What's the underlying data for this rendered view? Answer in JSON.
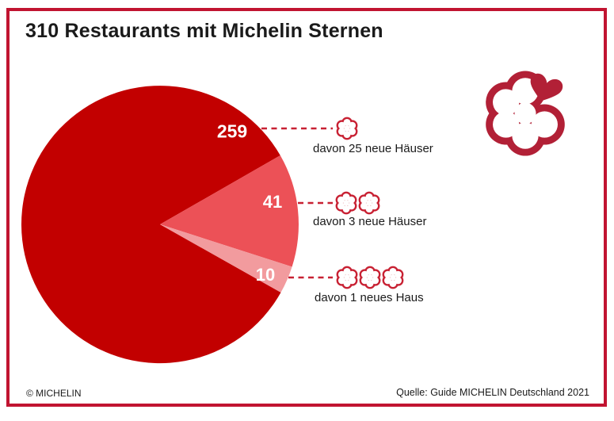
{
  "header": {
    "title": "310 Restaurants mit Michelin Sternen"
  },
  "chart_data": {
    "type": "pie",
    "title": "310 Restaurants mit Michelin Sternen",
    "total": 310,
    "unit": "Restaurants",
    "start_angle_deg": 29.4,
    "direction": "clockwise",
    "legend_position": "right-callouts",
    "value_label_color": "#FFFFFF",
    "slices": [
      {
        "value": 259,
        "stars": 1,
        "annotation": "davon 25 neue Häuser",
        "color": "#C20000"
      },
      {
        "value": 41,
        "stars": 2,
        "annotation": "davon 3 neue Häuser",
        "color": "#EC5157"
      },
      {
        "value": 10,
        "stars": 3,
        "annotation": "davon 1 neues Haus",
        "color": "#F29B9E"
      }
    ]
  },
  "icons": {
    "michelin_star_icon": "six-petal rosette outline (✾)",
    "michelin_logo": "rosette with heart-shaped petal (❤)"
  },
  "footer": {
    "copyright": "© MICHELIN",
    "source": "Quelle: Guide MICHELIN Deutschland 2021"
  },
  "colors": {
    "frame_border": "#C11431",
    "star_accent": "#C82133",
    "logo": "#B22036",
    "text": "#1A1A1A"
  }
}
